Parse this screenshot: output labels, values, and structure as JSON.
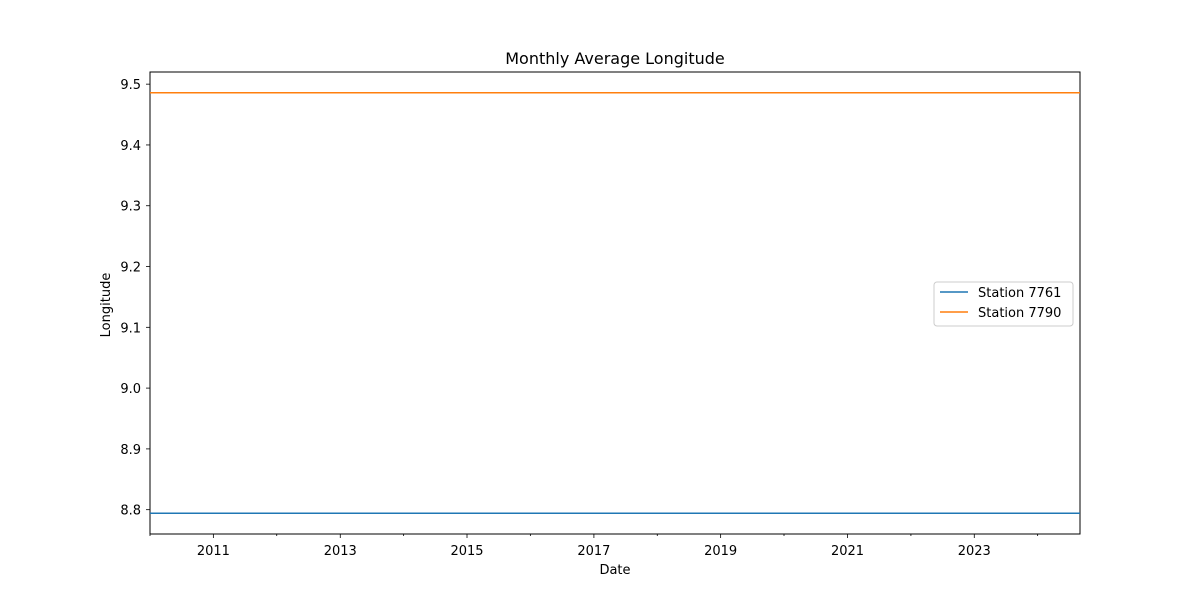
{
  "chart_data": {
    "type": "line",
    "title": "Monthly Average Longitude",
    "xlabel": "Date",
    "ylabel": "Longitude",
    "x_range": [
      "2010-01-01",
      "2024-09-01"
    ],
    "ylim": [
      8.76,
      9.52
    ],
    "x_ticks_major": [
      "2011",
      "2013",
      "2015",
      "2017",
      "2019",
      "2021",
      "2023"
    ],
    "x_ticks_minor": [
      "2010",
      "2012",
      "2014",
      "2016",
      "2018",
      "2020",
      "2022",
      "2024"
    ],
    "y_ticks": [
      "8.8",
      "8.9",
      "9.0",
      "9.1",
      "9.2",
      "9.3",
      "9.4",
      "9.5"
    ],
    "grid": false,
    "legend_position": "center-right",
    "series": [
      {
        "name": "Station 7761",
        "color": "#1f77b4",
        "x": [
          "2010-01-01",
          "2024-09-01"
        ],
        "y": [
          8.794,
          8.794
        ]
      },
      {
        "name": "Station 7790",
        "color": "#ff7f0e",
        "x": [
          "2010-01-01",
          "2024-09-01"
        ],
        "y": [
          9.486,
          9.486
        ]
      }
    ]
  }
}
